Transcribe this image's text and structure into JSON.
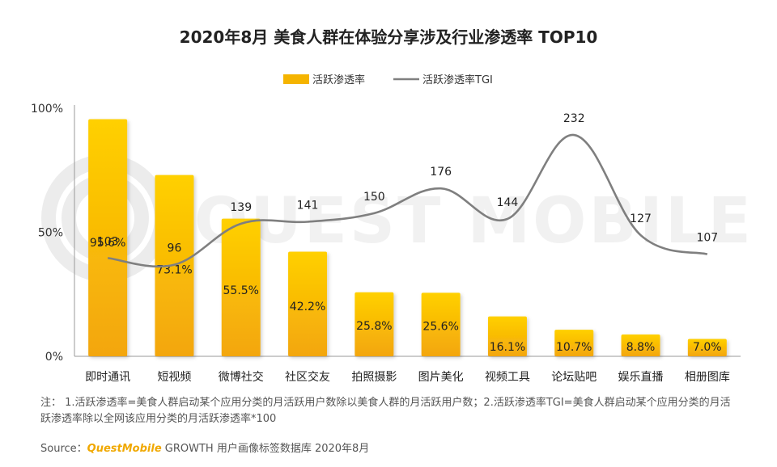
{
  "chart_data": {
    "type": "bar",
    "title": "2020年8月 美食人群在体验分享涉及行业渗透率 TOP10",
    "categories": [
      "即时通讯",
      "短视频",
      "微博社交",
      "社区交友",
      "拍照摄影",
      "图片美化",
      "视频工具",
      "论坛贴吧",
      "娱乐直播",
      "相册图库"
    ],
    "series": [
      {
        "name": "活跃渗透率",
        "type": "bar",
        "values": [
          95.6,
          73.1,
          55.5,
          42.2,
          25.8,
          25.6,
          16.1,
          10.7,
          8.8,
          7.0
        ],
        "labels": [
          "95.6%",
          "73.1%",
          "55.5%",
          "42.2%",
          "25.8%",
          "25.6%",
          "16.1%",
          "10.7%",
          "8.8%",
          "7.0%"
        ],
        "color": "#f5b400"
      },
      {
        "name": "活跃渗透率TGI",
        "type": "line",
        "values": [
          103,
          96,
          139,
          141,
          150,
          176,
          144,
          232,
          127,
          107
        ],
        "labels": [
          "103",
          "96",
          "139",
          "141",
          "150",
          "176",
          "144",
          "232",
          "127",
          "107"
        ],
        "color": "#7f7f7f"
      }
    ],
    "y_ticks": [
      "100%",
      "50%",
      "0%"
    ],
    "ylim": [
      0,
      100
    ],
    "y2lim": [
      0,
      260
    ],
    "legend": "top-center",
    "watermark": "QUEST MOBILE"
  },
  "footer": {
    "note": "注： 1.活跃渗透率=美食人群启动某个应用分类的月活跃用户数除以美食人群的月活跃用户数；2.活跃渗透率TGI=美食人群启动某个应用分类的月活跃渗透率除以全网该应用分类的月活跃渗透率*100",
    "source_prefix": "Source：",
    "source_brand": "QuestMobile",
    "source_rest": " GROWTH 用户画像标签数据库 2020年8月"
  }
}
